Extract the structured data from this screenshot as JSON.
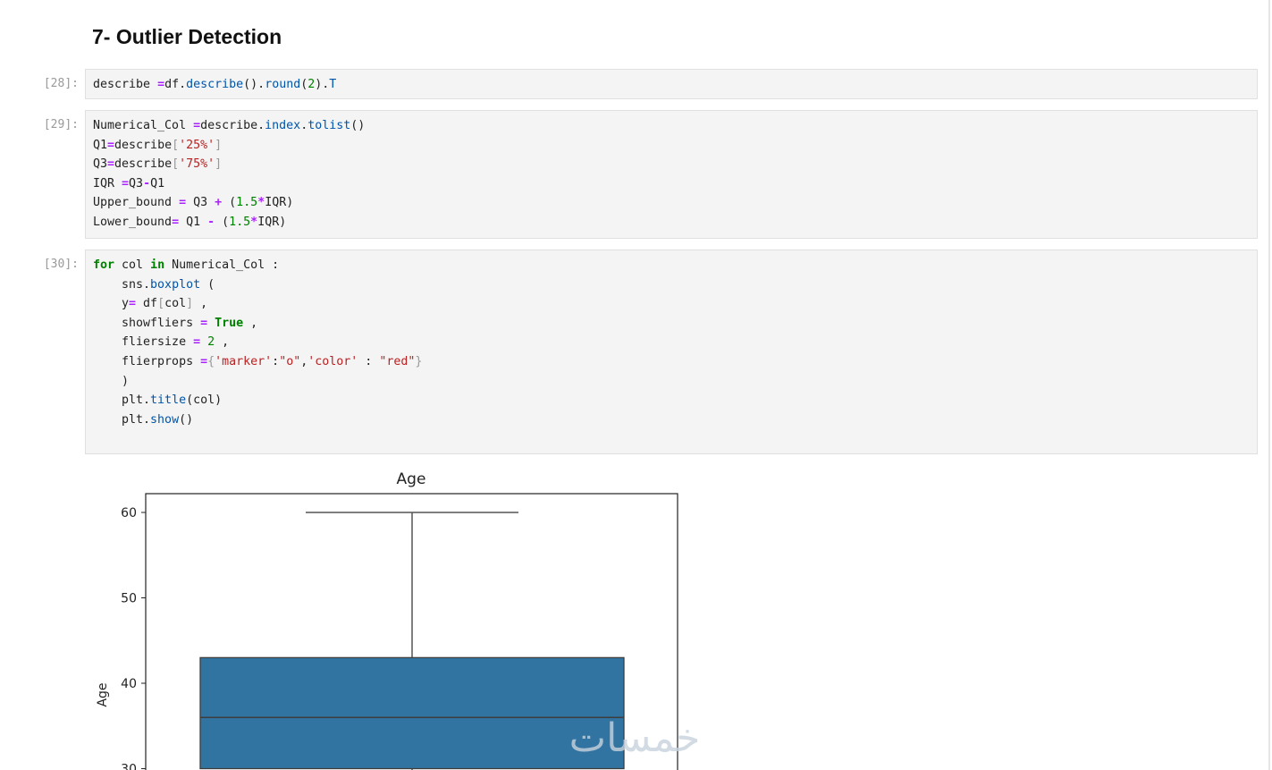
{
  "heading": "7- Outlier Detection",
  "cells": [
    {
      "prompt": "[28]:",
      "lines": [
        [
          [
            "txt",
            "describe "
          ],
          [
            "op",
            "="
          ],
          [
            "txt",
            "df."
          ],
          [
            "attr",
            "describe"
          ],
          [
            "txt",
            "()."
          ],
          [
            "attr",
            "round"
          ],
          [
            "txt",
            "("
          ],
          [
            "num",
            "2"
          ],
          [
            "txt",
            ")."
          ],
          [
            "attr",
            "T"
          ]
        ]
      ]
    },
    {
      "prompt": "[29]:",
      "lines": [
        [
          [
            "txt",
            "Numerical_Col "
          ],
          [
            "op",
            "="
          ],
          [
            "txt",
            "describe."
          ],
          [
            "attr",
            "index"
          ],
          [
            "txt",
            "."
          ],
          [
            "attr",
            "tolist"
          ],
          [
            "txt",
            "()"
          ]
        ],
        [
          [
            "txt",
            "Q1"
          ],
          [
            "op",
            "="
          ],
          [
            "txt",
            "describe"
          ],
          [
            "br",
            "["
          ],
          [
            "str",
            "'25%'"
          ],
          [
            "br",
            "]"
          ]
        ],
        [
          [
            "txt",
            "Q3"
          ],
          [
            "op",
            "="
          ],
          [
            "txt",
            "describe"
          ],
          [
            "br",
            "["
          ],
          [
            "str",
            "'75%'"
          ],
          [
            "br",
            "]"
          ]
        ],
        [
          [
            "txt",
            "IQR "
          ],
          [
            "op",
            "="
          ],
          [
            "txt",
            "Q3"
          ],
          [
            "op",
            "-"
          ],
          [
            "txt",
            "Q1"
          ]
        ],
        [
          [
            "txt",
            "Upper_bound "
          ],
          [
            "op",
            "="
          ],
          [
            "txt",
            " Q3 "
          ],
          [
            "op",
            "+"
          ],
          [
            "txt",
            " ("
          ],
          [
            "num",
            "1.5"
          ],
          [
            "op",
            "*"
          ],
          [
            "txt",
            "IQR)"
          ]
        ],
        [
          [
            "txt",
            "Lower_bound"
          ],
          [
            "op",
            "="
          ],
          [
            "txt",
            " Q1 "
          ],
          [
            "op",
            "-"
          ],
          [
            "txt",
            " ("
          ],
          [
            "num",
            "1.5"
          ],
          [
            "op",
            "*"
          ],
          [
            "txt",
            "IQR)"
          ]
        ]
      ]
    },
    {
      "prompt": "[30]:",
      "lines": [
        [
          [
            "kw",
            "for"
          ],
          [
            "txt",
            " col "
          ],
          [
            "kw",
            "in"
          ],
          [
            "txt",
            " Numerical_Col :"
          ]
        ],
        [
          [
            "txt",
            "    sns."
          ],
          [
            "attr",
            "boxplot"
          ],
          [
            "txt",
            " ("
          ]
        ],
        [
          [
            "txt",
            "    y"
          ],
          [
            "op",
            "="
          ],
          [
            "txt",
            " df"
          ],
          [
            "br",
            "["
          ],
          [
            "txt",
            "col"
          ],
          [
            "br",
            "]"
          ],
          [
            "txt",
            " ,"
          ]
        ],
        [
          [
            "txt",
            "    showfliers "
          ],
          [
            "op",
            "="
          ],
          [
            "txt",
            " "
          ],
          [
            "kw",
            "True"
          ],
          [
            "txt",
            " ,"
          ]
        ],
        [
          [
            "txt",
            "    fliersize "
          ],
          [
            "op",
            "="
          ],
          [
            "txt",
            " "
          ],
          [
            "num",
            "2"
          ],
          [
            "txt",
            " ,"
          ]
        ],
        [
          [
            "txt",
            "    flierprops "
          ],
          [
            "op",
            "="
          ],
          [
            "br",
            "{"
          ],
          [
            "str",
            "'marker'"
          ],
          [
            "txt",
            ":"
          ],
          [
            "str",
            "\"o\""
          ],
          [
            "txt",
            ","
          ],
          [
            "str",
            "'color'"
          ],
          [
            "txt",
            " : "
          ],
          [
            "str",
            "\"red\""
          ],
          [
            "br",
            "}"
          ]
        ],
        [
          [
            "txt",
            "    )"
          ]
        ],
        [
          [
            "txt",
            "    plt."
          ],
          [
            "attr",
            "title"
          ],
          [
            "txt",
            "(col)"
          ]
        ],
        [
          [
            "txt",
            "    plt."
          ],
          [
            "attr",
            "show"
          ],
          [
            "txt",
            "()"
          ]
        ],
        [
          [
            "txt",
            " "
          ]
        ]
      ]
    }
  ],
  "chart_data": {
    "type": "box",
    "title": "Age",
    "ylabel": "Age",
    "xlabel": "",
    "yticks": [
      30,
      40,
      50,
      60
    ],
    "ylim_visible": [
      30,
      62.2
    ],
    "box": {
      "q1": 30,
      "median": 36,
      "q3": 43,
      "whisker_high": 60
    },
    "box_color": "#3274a1",
    "grid": false
  },
  "watermark": "خمسات"
}
